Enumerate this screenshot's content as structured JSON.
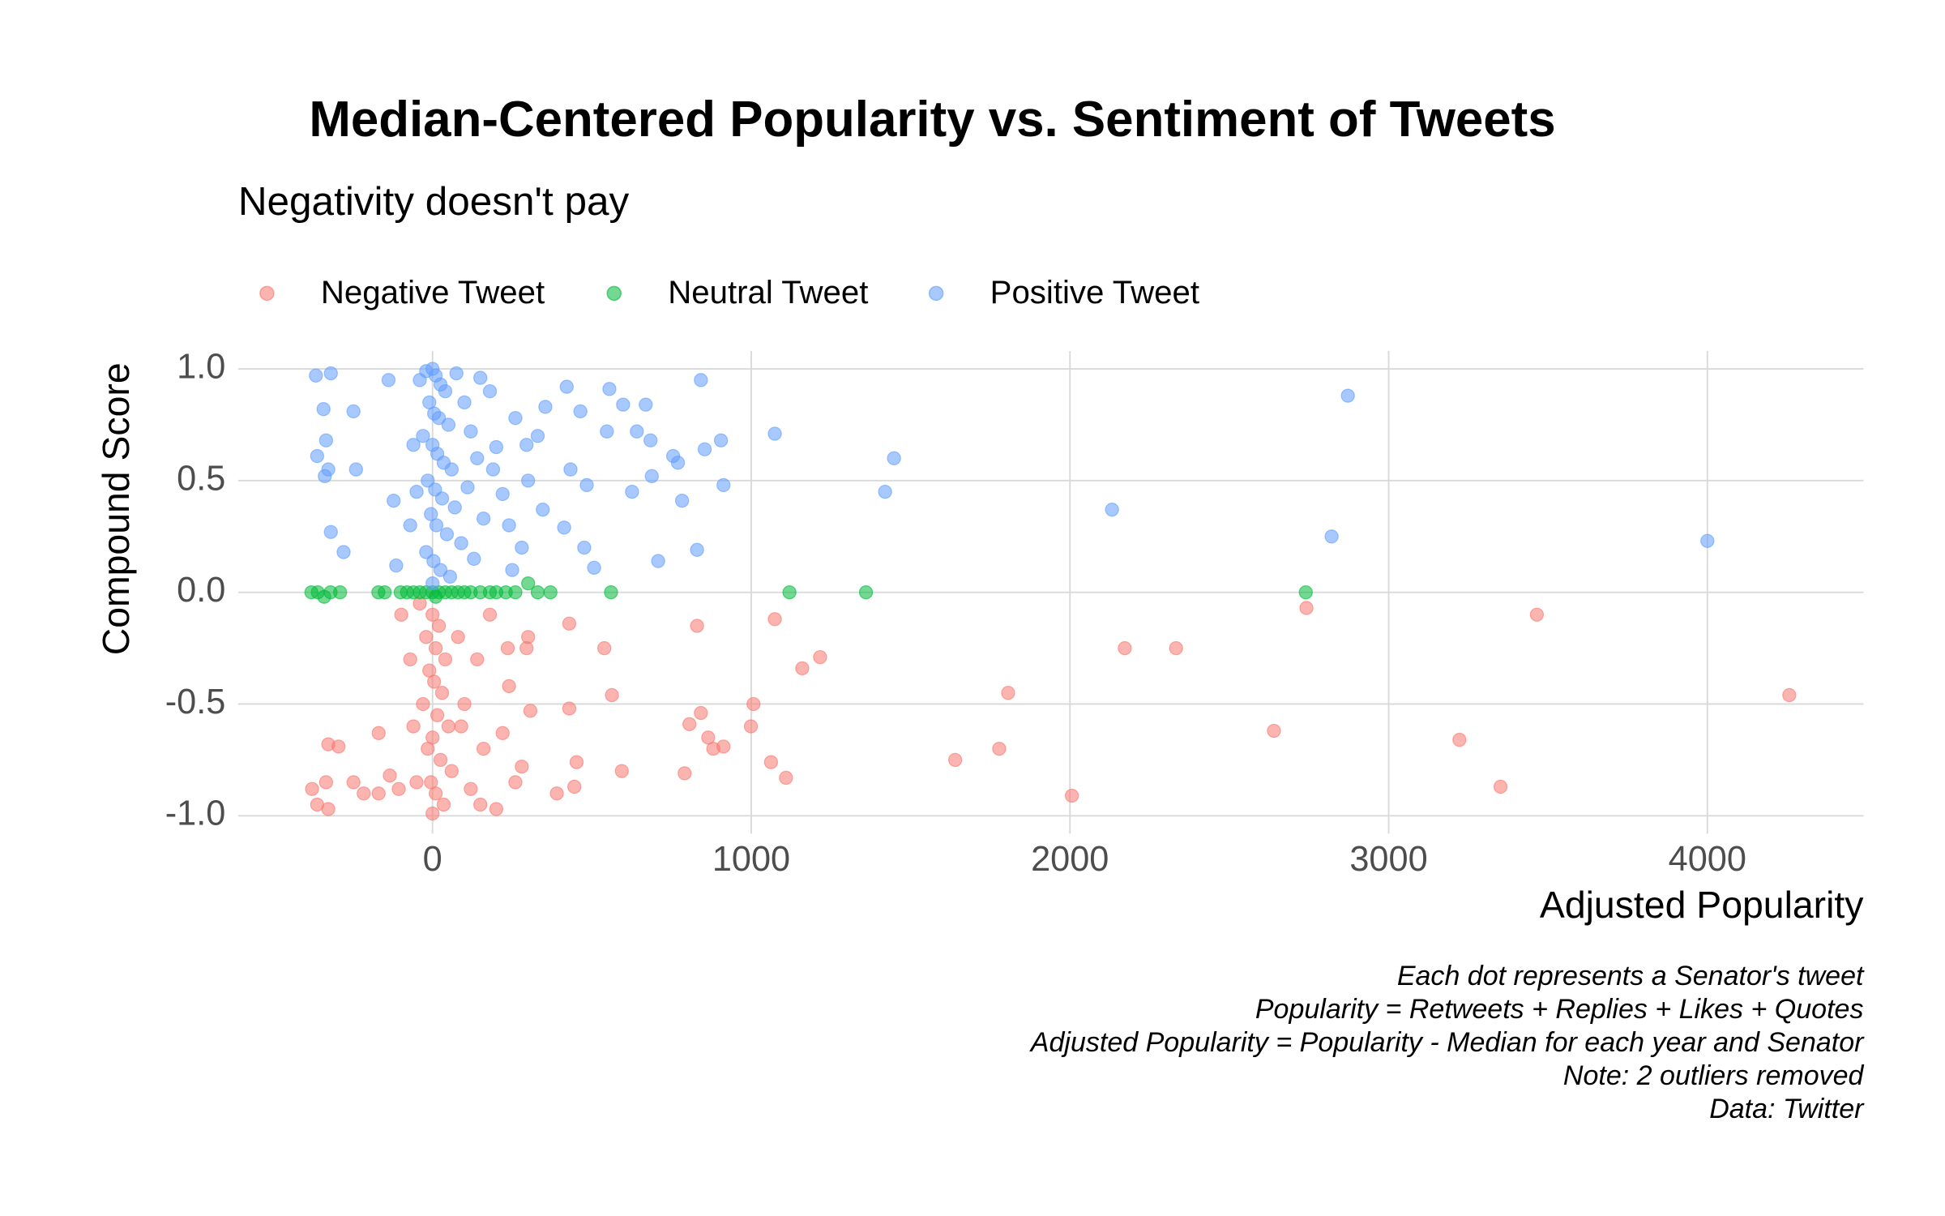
{
  "chart_data": {
    "type": "scatter",
    "title": "Median-Centered Popularity vs. Sentiment of Tweets",
    "subtitle": "Negativity doesn't pay",
    "x_label": "Adjusted Popularity",
    "y_label": "Compound Score",
    "caption": [
      "Each dot represents a Senator's tweet",
      "Popularity = Retweets + Replies + Likes + Quotes",
      "Adjusted Popularity = Popularity - Median for each year and Senator",
      "Note: 2 outliers removed",
      "Data: Twitter"
    ],
    "legend_position": "top-left",
    "grid": true,
    "xlim": [
      -610,
      4490
    ],
    "ylim": [
      -1.08,
      1.08
    ],
    "xticks": [
      0,
      1000,
      2000,
      3000,
      4000
    ],
    "yticks": [
      {
        "value": 1,
        "label": "1.0"
      },
      0.5,
      {
        "value": 0,
        "label": "0.0"
      },
      -0.5,
      {
        "value": -1,
        "label": "-1.0"
      }
    ],
    "series": [
      {
        "name": "Negative Tweet",
        "color": "#F8766D",
        "x": [
          4257,
          3465,
          3351,
          3222,
          2742,
          2640,
          2333,
          2172,
          2006,
          1806,
          1778,
          1640,
          1216,
          1160,
          1109,
          1074,
          1062,
          1007,
          999,
          913,
          881,
          865,
          842,
          830,
          806,
          791,
          594,
          563,
          539,
          429,
          452,
          445,
          429,
          390,
          307,
          295,
          236,
          -378,
          -362,
          -334,
          -327,
          -295,
          -327,
          -248,
          -216,
          -169,
          -169,
          -134,
          -106,
          -98,
          -40,
          0,
          20,
          -20,
          10,
          40,
          -10,
          5,
          30,
          -30,
          15,
          50,
          0,
          -15,
          25,
          60,
          -5,
          10,
          35,
          0,
          80,
          100,
          120,
          140,
          160,
          180,
          200,
          220,
          240,
          -60,
          -70,
          -50,
          260,
          280,
          300,
          150,
          90
        ],
        "values": [
          -0.46,
          -0.1,
          -0.87,
          -0.66,
          -0.07,
          -0.62,
          -0.25,
          -0.25,
          -0.91,
          -0.45,
          -0.7,
          -0.75,
          -0.29,
          -0.34,
          -0.83,
          -0.12,
          -0.76,
          -0.5,
          -0.6,
          -0.69,
          -0.7,
          -0.65,
          -0.54,
          -0.15,
          -0.59,
          -0.81,
          -0.8,
          -0.46,
          -0.25,
          -0.14,
          -0.76,
          -0.87,
          -0.52,
          -0.9,
          -0.53,
          -0.25,
          -0.25,
          -0.88,
          -0.95,
          -0.85,
          -0.68,
          -0.69,
          -0.97,
          -0.85,
          -0.9,
          -0.63,
          -0.9,
          -0.82,
          -0.88,
          -0.1,
          -0.05,
          -0.1,
          -0.15,
          -0.2,
          -0.25,
          -0.3,
          -0.35,
          -0.4,
          -0.45,
          -0.5,
          -0.55,
          -0.6,
          -0.65,
          -0.7,
          -0.75,
          -0.8,
          -0.85,
          -0.9,
          -0.95,
          -0.99,
          -0.2,
          -0.5,
          -0.88,
          -0.3,
          -0.7,
          -0.1,
          -0.97,
          -0.63,
          -0.42,
          -0.6,
          -0.3,
          -0.85,
          -0.85,
          -0.78,
          -0.2,
          -0.95,
          -0.6
        ]
      },
      {
        "name": "Neutral Tweet",
        "color": "#00BA38",
        "x": [
          -380,
          -360,
          -340,
          -320,
          -290,
          -170,
          -150,
          -100,
          -80,
          -60,
          -40,
          -20,
          0,
          10,
          20,
          40,
          60,
          80,
          100,
          120,
          150,
          180,
          200,
          230,
          260,
          300,
          330,
          370,
          560,
          1120,
          1360,
          2740
        ],
        "values": [
          0,
          0,
          -0.02,
          0,
          0,
          0,
          0,
          0,
          0,
          0,
          0,
          0,
          0,
          -0.02,
          0,
          0,
          0,
          0,
          0,
          0,
          0,
          0,
          0,
          0,
          0,
          0.04,
          0,
          0,
          0,
          0,
          0,
          0
        ]
      },
      {
        "name": "Positive Tweet",
        "color": "#619CFF",
        "x": [
          2872,
          4000,
          2821,
          2132,
          1420,
          1448,
          1074,
          913,
          905,
          842,
          854,
          830,
          783,
          755,
          770,
          708,
          688,
          684,
          669,
          641,
          626,
          598,
          555,
          547,
          484,
          507,
          476,
          433,
          413,
          464,
          421,
          346,
          354,
          295,
          -366,
          -319,
          -342,
          -334,
          -362,
          -327,
          -338,
          -319,
          -279,
          -248,
          -240,
          -138,
          -122,
          -114,
          -40,
          -20,
          0,
          10,
          25,
          40,
          -10,
          5,
          20,
          50,
          -30,
          0,
          15,
          35,
          60,
          -15,
          8,
          30,
          70,
          -5,
          12,
          45,
          90,
          -20,
          3,
          25,
          55,
          0,
          100,
          120,
          140,
          110,
          160,
          180,
          200,
          220,
          240,
          260,
          280,
          150,
          -60,
          -50,
          -70,
          75,
          130,
          190,
          300,
          330,
          250
        ],
        "values": [
          0.88,
          0.23,
          0.25,
          0.37,
          0.45,
          0.6,
          0.71,
          0.48,
          0.68,
          0.95,
          0.64,
          0.19,
          0.41,
          0.61,
          0.58,
          0.14,
          0.52,
          0.68,
          0.84,
          0.72,
          0.45,
          0.84,
          0.91,
          0.72,
          0.48,
          0.11,
          0.2,
          0.55,
          0.29,
          0.81,
          0.92,
          0.37,
          0.83,
          0.66,
          0.97,
          0.98,
          0.82,
          0.68,
          0.61,
          0.55,
          0.52,
          0.27,
          0.18,
          0.81,
          0.55,
          0.95,
          0.41,
          0.12,
          0.95,
          0.99,
          1,
          0.97,
          0.93,
          0.9,
          0.85,
          0.8,
          0.78,
          0.75,
          0.7,
          0.66,
          0.62,
          0.58,
          0.55,
          0.5,
          0.46,
          0.42,
          0.38,
          0.35,
          0.3,
          0.26,
          0.22,
          0.18,
          0.14,
          0.1,
          0.07,
          0.04,
          0.85,
          0.72,
          0.6,
          0.47,
          0.33,
          0.9,
          0.65,
          0.44,
          0.3,
          0.78,
          0.2,
          0.96,
          0.66,
          0.45,
          0.3,
          0.98,
          0.15,
          0.55,
          0.5,
          0.7,
          0.1
        ]
      }
    ]
  }
}
